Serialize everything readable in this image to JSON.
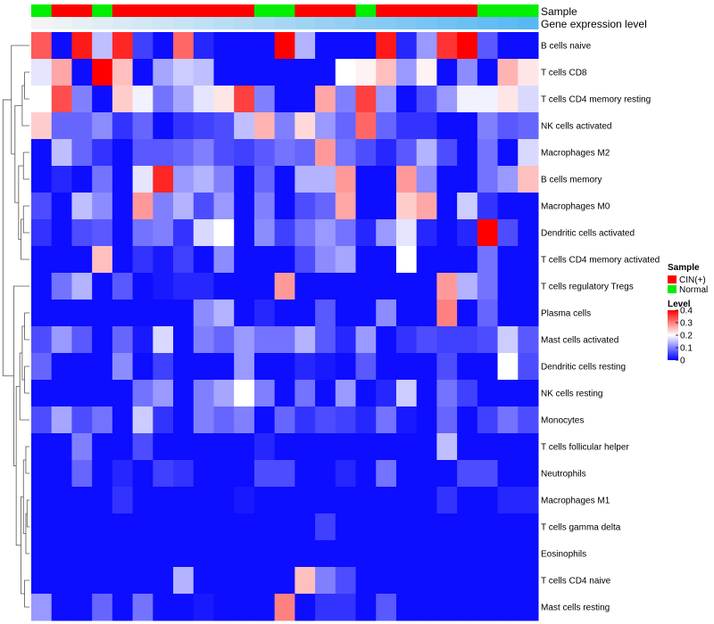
{
  "chart_data": {
    "type": "heatmap",
    "title": "",
    "annotation_labels": [
      "Sample",
      "Gene expression level"
    ],
    "sample_groups": [
      "Normal",
      "CIN(+)",
      "CIN(+)",
      "Normal",
      "CIN(+)",
      "CIN(+)",
      "CIN(+)",
      "CIN(+)",
      "CIN(+)",
      "CIN(+)",
      "CIN(+)",
      "Normal",
      "Normal",
      "CIN(+)",
      "CIN(+)",
      "CIN(+)",
      "Normal",
      "CIN(+)",
      "CIN(+)",
      "CIN(+)",
      "CIN(+)",
      "CIN(+)",
      "Normal",
      "Normal",
      "Normal"
    ],
    "expression_gradient": [
      "#f4f4f4",
      "#57b8f3"
    ],
    "rows": [
      "B cells naive",
      "T cells CD8",
      "T cells CD4 memory resting",
      "NK cells activated",
      "Macrophages M2",
      "B cells memory",
      "Macrophages M0",
      "Dendritic cells activated",
      "T cells CD4 memory activated",
      "T cells regulatory  Tregs",
      "Plasma cells",
      "Mast cells activated",
      "Dendritic cells resting",
      "NK cells resting",
      "Monocytes",
      "T cells follicular helper",
      "Neutrophils",
      "Macrophages M1",
      "T cells gamma delta",
      "Eosinophils",
      "T cells CD4 naive",
      "Mast cells resting"
    ],
    "values": [
      [
        0.33,
        0.01,
        0.38,
        0.15,
        0.37,
        0.05,
        0.01,
        0.32,
        0.03,
        0.01,
        0.01,
        0.01,
        0.4,
        0.14,
        0.01,
        0.01,
        0.01,
        0.38,
        0.03,
        0.12,
        0.36,
        0.4,
        0.07,
        0.01,
        0.01
      ],
      [
        0.18,
        0.27,
        0.01,
        0.4,
        0.25,
        0.01,
        0.13,
        0.16,
        0.15,
        0.01,
        0.01,
        0.01,
        0.01,
        0.01,
        0.01,
        0.2,
        0.21,
        0.25,
        0.12,
        0.21,
        0.01,
        0.11,
        0.01,
        0.26,
        0.22
      ],
      [
        0.2,
        0.34,
        0.1,
        0.01,
        0.24,
        0.19,
        0.09,
        0.13,
        0.18,
        0.22,
        0.35,
        0.1,
        0.01,
        0.01,
        0.27,
        0.1,
        0.35,
        0.12,
        0.01,
        0.06,
        0.12,
        0.19,
        0.19,
        0.22,
        0.17
      ],
      [
        0.24,
        0.08,
        0.08,
        0.11,
        0.04,
        0.08,
        0.01,
        0.04,
        0.05,
        0.06,
        0.15,
        0.26,
        0.1,
        0.23,
        0.12,
        0.08,
        0.32,
        0.08,
        0.04,
        0.04,
        0.01,
        0.01,
        0.1,
        0.07,
        0.08
      ],
      [
        0.01,
        0.15,
        0.08,
        0.04,
        0.01,
        0.07,
        0.07,
        0.08,
        0.1,
        0.06,
        0.05,
        0.07,
        0.09,
        0.08,
        0.28,
        0.09,
        0.06,
        0.03,
        0.07,
        0.14,
        0.06,
        0.01,
        0.09,
        0.01,
        0.17
      ],
      [
        0.01,
        0.03,
        0.01,
        0.09,
        0.01,
        0.18,
        0.37,
        0.12,
        0.14,
        0.1,
        0.01,
        0.08,
        0.01,
        0.14,
        0.14,
        0.28,
        0.01,
        0.01,
        0.28,
        0.11,
        0.01,
        0.01,
        0.09,
        0.12,
        0.25
      ],
      [
        0.06,
        0.01,
        0.15,
        0.11,
        0.01,
        0.28,
        0.1,
        0.14,
        0.06,
        0.12,
        0.01,
        0.1,
        0.01,
        0.06,
        0.08,
        0.27,
        0.01,
        0.01,
        0.24,
        0.27,
        0.01,
        0.16,
        0.04,
        0.01,
        0.01
      ],
      [
        0.04,
        0.01,
        0.06,
        0.07,
        0.01,
        0.09,
        0.1,
        0.04,
        0.17,
        0.2,
        0.01,
        0.11,
        0.05,
        0.09,
        0.12,
        0.09,
        0.03,
        0.12,
        0.18,
        0.03,
        0.01,
        0.03,
        0.4,
        0.06,
        0.01
      ],
      [
        0.01,
        0.01,
        0.01,
        0.25,
        0.01,
        0.04,
        0.02,
        0.05,
        0.01,
        0.11,
        0.01,
        0.01,
        0.01,
        0.06,
        0.11,
        0.13,
        0.01,
        0.01,
        0.2,
        0.01,
        0.01,
        0.01,
        0.09,
        0.01,
        0.01
      ],
      [
        0.01,
        0.09,
        0.14,
        0.01,
        0.07,
        0.01,
        0.02,
        0.03,
        0.03,
        0.01,
        0.01,
        0.01,
        0.28,
        0.01,
        0.01,
        0.01,
        0.01,
        0.01,
        0.01,
        0.01,
        0.28,
        0.14,
        0.09,
        0.01,
        0.01
      ],
      [
        0.01,
        0.01,
        0.01,
        0.01,
        0.01,
        0.01,
        0.01,
        0.01,
        0.11,
        0.14,
        0.01,
        0.03,
        0.01,
        0.01,
        0.07,
        0.01,
        0.01,
        0.11,
        0.01,
        0.01,
        0.3,
        0.01,
        0.08,
        0.01,
        0.01
      ],
      [
        0.06,
        0.12,
        0.07,
        0.01,
        0.08,
        0.02,
        0.17,
        0.01,
        0.1,
        0.08,
        0.12,
        0.09,
        0.09,
        0.14,
        0.07,
        0.03,
        0.12,
        0.01,
        0.04,
        0.06,
        0.05,
        0.05,
        0.06,
        0.16,
        0.07
      ],
      [
        0.08,
        0.01,
        0.01,
        0.01,
        0.11,
        0.01,
        0.05,
        0.01,
        0.01,
        0.01,
        0.12,
        0.01,
        0.01,
        0.03,
        0.02,
        0.01,
        0.07,
        0.01,
        0.01,
        0.01,
        0.06,
        0.01,
        0.01,
        0.2,
        0.06
      ],
      [
        0.01,
        0.01,
        0.01,
        0.01,
        0.01,
        0.09,
        0.12,
        0.01,
        0.1,
        0.13,
        0.2,
        0.1,
        0.01,
        0.09,
        0.01,
        0.12,
        0.01,
        0.03,
        0.16,
        0.01,
        0.09,
        0.05,
        0.01,
        0.01,
        0.01
      ],
      [
        0.06,
        0.13,
        0.06,
        0.09,
        0.01,
        0.16,
        0.04,
        0.01,
        0.1,
        0.08,
        0.1,
        0.01,
        0.08,
        0.04,
        0.06,
        0.05,
        0.03,
        0.09,
        0.02,
        0.01,
        0.08,
        0.01,
        0.05,
        0.09,
        0.06
      ],
      [
        0.01,
        0.01,
        0.1,
        0.01,
        0.01,
        0.06,
        0.01,
        0.01,
        0.01,
        0.01,
        0.01,
        0.03,
        0.01,
        0.01,
        0.01,
        0.01,
        0.01,
        0.01,
        0.01,
        0.01,
        0.15,
        0.01,
        0.01,
        0.01,
        0.01
      ],
      [
        0.01,
        0.01,
        0.08,
        0.01,
        0.03,
        0.01,
        0.05,
        0.04,
        0.01,
        0.01,
        0.01,
        0.06,
        0.06,
        0.01,
        0.01,
        0.03,
        0.01,
        0.09,
        0.01,
        0.01,
        0.01,
        0.06,
        0.06,
        0.01,
        0.01
      ],
      [
        0.01,
        0.01,
        0.01,
        0.01,
        0.04,
        0.01,
        0.01,
        0.01,
        0.01,
        0.01,
        0.02,
        0.01,
        0.01,
        0.01,
        0.01,
        0.01,
        0.01,
        0.01,
        0.01,
        0.01,
        0.04,
        0.01,
        0.01,
        0.03,
        0.03
      ],
      [
        0.01,
        0.01,
        0.01,
        0.01,
        0.01,
        0.01,
        0.01,
        0.01,
        0.01,
        0.01,
        0.01,
        0.01,
        0.01,
        0.01,
        0.05,
        0.01,
        0.01,
        0.01,
        0.01,
        0.01,
        0.01,
        0.01,
        0.01,
        0.01,
        0.01
      ],
      [
        0.01,
        0.01,
        0.01,
        0.01,
        0.01,
        0.01,
        0.01,
        0.01,
        0.01,
        0.01,
        0.01,
        0.01,
        0.01,
        0.01,
        0.01,
        0.01,
        0.01,
        0.01,
        0.01,
        0.01,
        0.01,
        0.01,
        0.01,
        0.01,
        0.01
      ],
      [
        0.01,
        0.01,
        0.01,
        0.01,
        0.01,
        0.01,
        0.01,
        0.14,
        0.01,
        0.01,
        0.01,
        0.01,
        0.01,
        0.25,
        0.1,
        0.06,
        0.01,
        0.01,
        0.01,
        0.01,
        0.01,
        0.01,
        0.01,
        0.01,
        0.01
      ],
      [
        0.12,
        0.01,
        0.01,
        0.08,
        0.01,
        0.09,
        0.01,
        0.01,
        0.02,
        0.01,
        0.01,
        0.01,
        0.3,
        0.01,
        0.04,
        0.04,
        0.01,
        0.07,
        0.01,
        0.01,
        0.01,
        0.01,
        0.01,
        0.01,
        0.01
      ]
    ],
    "legend": {
      "sample_title": "Sample",
      "sample_entries": [
        {
          "label": "CIN(+)",
          "color": "#ff0000"
        },
        {
          "label": "Normal",
          "color": "#00ee00"
        }
      ],
      "level_title": "Level",
      "level_ticks": [
        0.4,
        0.3,
        0.2,
        0.1,
        0
      ],
      "level_tick_labels": [
        "0.4",
        "0.3",
        "0.2",
        "0.1",
        "0"
      ],
      "color_scale": [
        "#0000ff",
        "#ffffff",
        "#ff0000"
      ],
      "scale_range": [
        0,
        0.4
      ]
    }
  }
}
